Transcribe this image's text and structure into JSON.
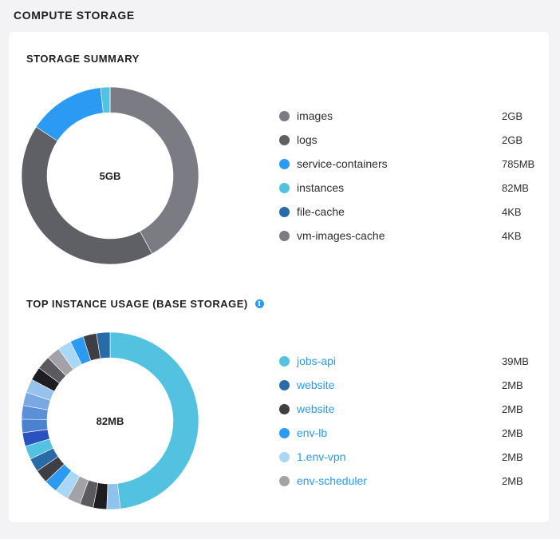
{
  "page": {
    "title": "COMPUTE STORAGE"
  },
  "summary": {
    "title": "STORAGE SUMMARY",
    "center_label": "5GB",
    "segments": [
      {
        "label": "images",
        "value": "2GB",
        "color": "#7b7b83",
        "fraction": 0.4215
      },
      {
        "label": "logs",
        "value": "2GB",
        "color": "#5f5f66",
        "fraction": 0.4215
      },
      {
        "label": "service-containers",
        "value": "785MB",
        "color": "#2b9af3",
        "fraction": 0.14
      },
      {
        "label": "instances",
        "value": "82MB",
        "color": "#53c2e0",
        "fraction": 0.017
      },
      {
        "label": "file-cache",
        "value": "4KB",
        "color": "#286ba8",
        "fraction": 0.0001
      },
      {
        "label": "vm-images-cache",
        "value": "4KB",
        "color": "#7b7b83",
        "fraction": 0.0001
      }
    ],
    "legend": [
      {
        "label": "images",
        "value": "2GB",
        "color": "#7b7b83"
      },
      {
        "label": "logs",
        "value": "2GB",
        "color": "#5f5f66"
      },
      {
        "label": "service-containers",
        "value": "785MB",
        "color": "#2b9af3"
      },
      {
        "label": "instances",
        "value": "82MB",
        "color": "#53c2e0"
      },
      {
        "label": "file-cache",
        "value": "4KB",
        "color": "#286ba8"
      },
      {
        "label": "vm-images-cache",
        "value": "4KB",
        "color": "#7b7b83"
      }
    ]
  },
  "instances": {
    "title": "TOP INSTANCE USAGE (BASE STORAGE)",
    "info_icon": "info-icon",
    "center_label": "82MB",
    "segments": [
      {
        "color": "#53c2e0",
        "fraction": 0.4756
      },
      {
        "color": "#8fc3ee",
        "fraction": 0.0244
      },
      {
        "color": "#1e1e22",
        "fraction": 0.0244
      },
      {
        "color": "#5a5a60",
        "fraction": 0.0244
      },
      {
        "color": "#a2a2a8",
        "fraction": 0.0244
      },
      {
        "color": "#a8d8f5",
        "fraction": 0.0244
      },
      {
        "color": "#2b9af3",
        "fraction": 0.0244
      },
      {
        "color": "#3e3e44",
        "fraction": 0.0244
      },
      {
        "color": "#286ba8",
        "fraction": 0.0244
      },
      {
        "color": "#53c2e0",
        "fraction": 0.0244
      },
      {
        "color": "#2a52be",
        "fraction": 0.0244
      },
      {
        "color": "#4a82d0",
        "fraction": 0.0244
      },
      {
        "color": "#5b90d8",
        "fraction": 0.0244
      },
      {
        "color": "#7aa8e2",
        "fraction": 0.0244
      },
      {
        "color": "#98c2ee",
        "fraction": 0.0244
      },
      {
        "color": "#1e1e22",
        "fraction": 0.0244
      },
      {
        "color": "#5a5a60",
        "fraction": 0.0244
      },
      {
        "color": "#a2a2a8",
        "fraction": 0.0244
      },
      {
        "color": "#a8d8f5",
        "fraction": 0.0244
      },
      {
        "color": "#2b9af3",
        "fraction": 0.0244
      },
      {
        "color": "#3e3e44",
        "fraction": 0.0244
      },
      {
        "color": "#286ba8",
        "fraction": 0.0244
      }
    ],
    "legend": [
      {
        "label": "jobs-api",
        "value": "39MB",
        "color": "#53c2e0"
      },
      {
        "label": "website",
        "value": "2MB",
        "color": "#286ba8"
      },
      {
        "label": "website",
        "value": "2MB",
        "color": "#3e3e44"
      },
      {
        "label": "env-lb",
        "value": "2MB",
        "color": "#2b9af3"
      },
      {
        "label": "1.env-vpn",
        "value": "2MB",
        "color": "#a8d8f5"
      },
      {
        "label": "env-scheduler",
        "value": "2MB",
        "color": "#a2a2a8"
      }
    ]
  }
}
